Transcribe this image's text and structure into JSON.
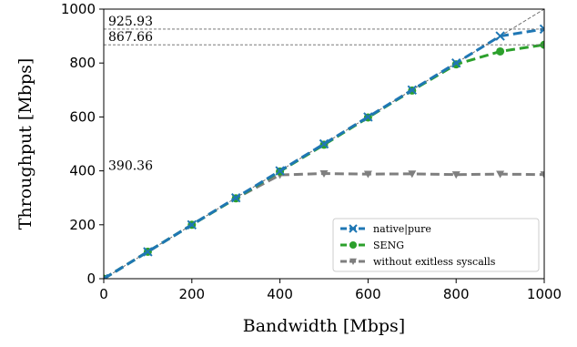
{
  "chart_data": {
    "type": "line",
    "xlabel": "Bandwidth [Mbps]",
    "ylabel": "Throughput [Mbps]",
    "xlim": [
      0,
      1000
    ],
    "ylim": [
      0,
      1000
    ],
    "xticks": [
      "0",
      "200",
      "400",
      "600",
      "800",
      "1000"
    ],
    "yticks": [
      "0",
      "200",
      "400",
      "600",
      "800",
      "1000"
    ],
    "grid": false,
    "legend_position": "bottom-right",
    "reference_line": {
      "from": [
        0,
        0
      ],
      "to": [
        1000,
        1000
      ],
      "color": "#666666"
    },
    "annotations": [
      {
        "label": "925.93",
        "y": 925.93
      },
      {
        "label": "867.66",
        "y": 867.66
      },
      {
        "label": "390.36",
        "y": 390.36
      }
    ],
    "series": [
      {
        "name": "native|pure",
        "color": "#1f77b4",
        "marker": "x",
        "x": [
          0,
          100,
          200,
          300,
          400,
          500,
          600,
          700,
          800,
          900,
          1000
        ],
        "y": [
          0,
          100,
          200,
          300,
          400,
          500,
          600,
          700,
          800,
          900,
          925.93
        ]
      },
      {
        "name": "SENG",
        "color": "#2ca02c",
        "marker": "circle",
        "x": [
          0,
          100,
          200,
          300,
          400,
          500,
          600,
          700,
          800,
          900,
          1000
        ],
        "y": [
          0,
          100,
          200,
          298,
          398,
          497,
          598,
          698,
          795,
          843,
          867.66
        ]
      },
      {
        "name": "without exitless syscalls",
        "color": "#7f7f7f",
        "marker": "triangle-down",
        "x": [
          0,
          100,
          200,
          300,
          400,
          500,
          600,
          700,
          800,
          900,
          1000
        ],
        "y": [
          0,
          100,
          200,
          298,
          385,
          390,
          388,
          389,
          386,
          388,
          386
        ]
      }
    ]
  }
}
